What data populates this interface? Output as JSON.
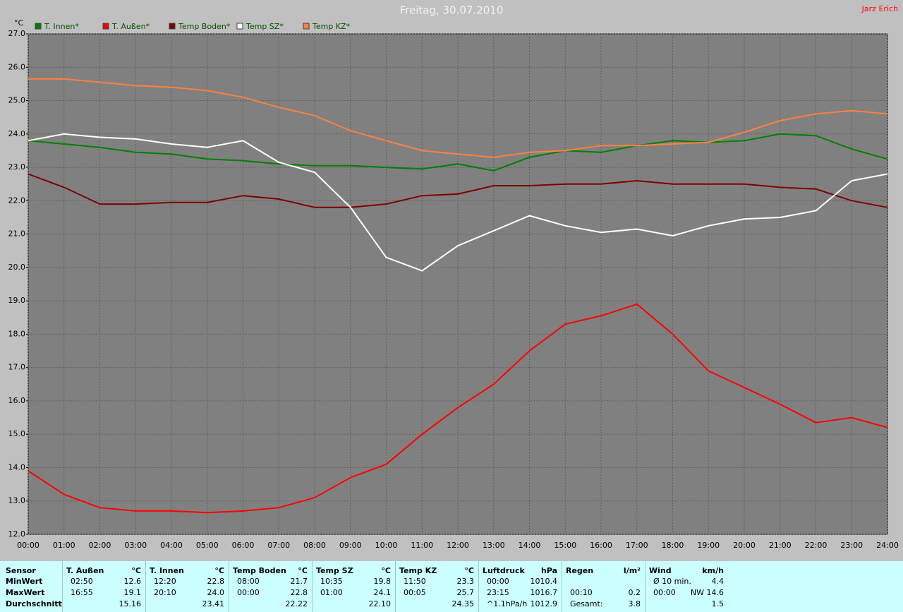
{
  "chart_data": {
    "type": "line",
    "title": "Freitag, 30.07.2010",
    "author": "Jarz Erich",
    "y_label": "°C",
    "categories": [
      "00:00",
      "01:00",
      "02:00",
      "03:00",
      "04:00",
      "05:00",
      "06:00",
      "07:00",
      "08:00",
      "09:00",
      "10:00",
      "11:00",
      "12:00",
      "13:00",
      "14:00",
      "15:00",
      "16:00",
      "17:00",
      "18:00",
      "19:00",
      "20:00",
      "21:00",
      "22:00",
      "23:00",
      "24:00"
    ],
    "series": [
      {
        "name": "T. Innen*",
        "color": "#008000",
        "values": [
          23.8,
          23.7,
          23.6,
          23.45,
          23.4,
          23.25,
          23.2,
          23.1,
          23.05,
          23.05,
          23.0,
          22.95,
          23.1,
          22.9,
          23.3,
          23.5,
          23.45,
          23.65,
          23.8,
          23.75,
          23.8,
          24.0,
          23.95,
          23.55,
          23.25
        ]
      },
      {
        "name": "T. Außen*",
        "color": "#ff0000",
        "values": [
          13.9,
          13.2,
          12.8,
          12.7,
          12.7,
          12.65,
          12.7,
          12.8,
          13.1,
          13.7,
          14.1,
          15.0,
          15.8,
          16.5,
          17.5,
          18.3,
          18.55,
          18.9,
          18.0,
          16.9,
          16.4,
          15.9,
          15.35,
          15.5,
          15.2
        ]
      },
      {
        "name": "Temp Boden*",
        "color": "#800000",
        "values": [
          22.8,
          22.4,
          21.9,
          21.9,
          21.95,
          21.95,
          22.15,
          22.05,
          21.8,
          21.8,
          21.9,
          22.15,
          22.2,
          22.45,
          22.45,
          22.5,
          22.5,
          22.6,
          22.5,
          22.5,
          22.5,
          22.4,
          22.35,
          22.0,
          21.8
        ]
      },
      {
        "name": "Temp SZ*",
        "color": "#ffffff",
        "values": [
          23.8,
          24.0,
          23.9,
          23.85,
          23.7,
          23.6,
          23.8,
          23.15,
          22.85,
          21.8,
          20.3,
          19.9,
          20.65,
          21.1,
          21.55,
          21.25,
          21.05,
          21.15,
          20.95,
          21.25,
          21.45,
          21.5,
          21.7,
          22.6,
          22.8
        ]
      },
      {
        "name": "Temp KZ*",
        "color": "#ff8040",
        "values": [
          25.65,
          25.65,
          25.55,
          25.45,
          25.4,
          25.3,
          25.1,
          24.8,
          24.55,
          24.1,
          23.8,
          23.5,
          23.4,
          23.3,
          23.45,
          23.5,
          23.65,
          23.65,
          23.7,
          23.75,
          24.05,
          24.4,
          24.6,
          24.7,
          24.6
        ]
      }
    ],
    "ylim": [
      12,
      27
    ],
    "yticks": [
      {
        "value": 12,
        "label": "12.0"
      },
      {
        "value": 13,
        "label": "13.0"
      },
      {
        "value": 14,
        "label": "14.0"
      },
      {
        "value": 15,
        "label": "15.0"
      },
      {
        "value": 16,
        "label": "16.0"
      },
      {
        "value": 17,
        "label": "17.0"
      },
      {
        "value": 18,
        "label": "18.0"
      },
      {
        "value": 19,
        "label": "19.0"
      },
      {
        "value": 20,
        "label": "20.0"
      },
      {
        "value": 21,
        "label": "21.0"
      },
      {
        "value": 22,
        "label": "22.0"
      },
      {
        "value": 23,
        "label": "23.0"
      },
      {
        "value": 24,
        "label": "24.0"
      },
      {
        "value": 25,
        "label": "25.0"
      },
      {
        "value": 26,
        "label": "26.0"
      },
      {
        "value": 27,
        "label": "27.0"
      }
    ],
    "grid": true,
    "legend": "top-left"
  },
  "table": {
    "row_labels": [
      "Sensor",
      "MinWert",
      "MaxWert",
      "Durchschnitt"
    ],
    "columns": [
      {
        "name": "T. Außen",
        "unit": "°C",
        "rows": [
          [
            "02:50",
            "12.6"
          ],
          [
            "16:55",
            "19.1"
          ],
          [
            "15.16"
          ]
        ]
      },
      {
        "name": "T. Innen",
        "unit": "°C",
        "rows": [
          [
            "12:20",
            "22.8"
          ],
          [
            "20:10",
            "24.0"
          ],
          [
            "23.41"
          ]
        ]
      },
      {
        "name": "Temp Boden",
        "unit": "°C",
        "rows": [
          [
            "08:00",
            "21.7"
          ],
          [
            "00:00",
            "22.8"
          ],
          [
            "22.22"
          ]
        ]
      },
      {
        "name": "Temp SZ",
        "unit": "°C",
        "rows": [
          [
            "10:35",
            "19.8"
          ],
          [
            "01:00",
            "24.1"
          ],
          [
            "22.10"
          ]
        ]
      },
      {
        "name": "Temp KZ",
        "unit": "°C",
        "rows": [
          [
            "11:50",
            "23.3"
          ],
          [
            "00:05",
            "25.7"
          ],
          [
            "24.35"
          ]
        ]
      },
      {
        "name": "Luftdruck",
        "unit": "hPa",
        "rows": [
          [
            "00:00",
            "1010.4"
          ],
          [
            "23:15",
            "1016.7"
          ],
          [
            "^1.1hPa/h",
            "1012.9"
          ]
        ]
      },
      {
        "name": "Regen",
        "unit": "l/m²",
        "rows": [
          [],
          [
            "00:10",
            "0.2"
          ],
          [
            "Gesamt:",
            "3.8"
          ]
        ]
      },
      {
        "name": "Wind",
        "unit": "km/h",
        "rows": [
          [
            "Ø 10 min.",
            "4.4"
          ],
          [
            "00:00",
            "NW 14.6"
          ],
          [
            "1.5"
          ]
        ]
      }
    ]
  }
}
